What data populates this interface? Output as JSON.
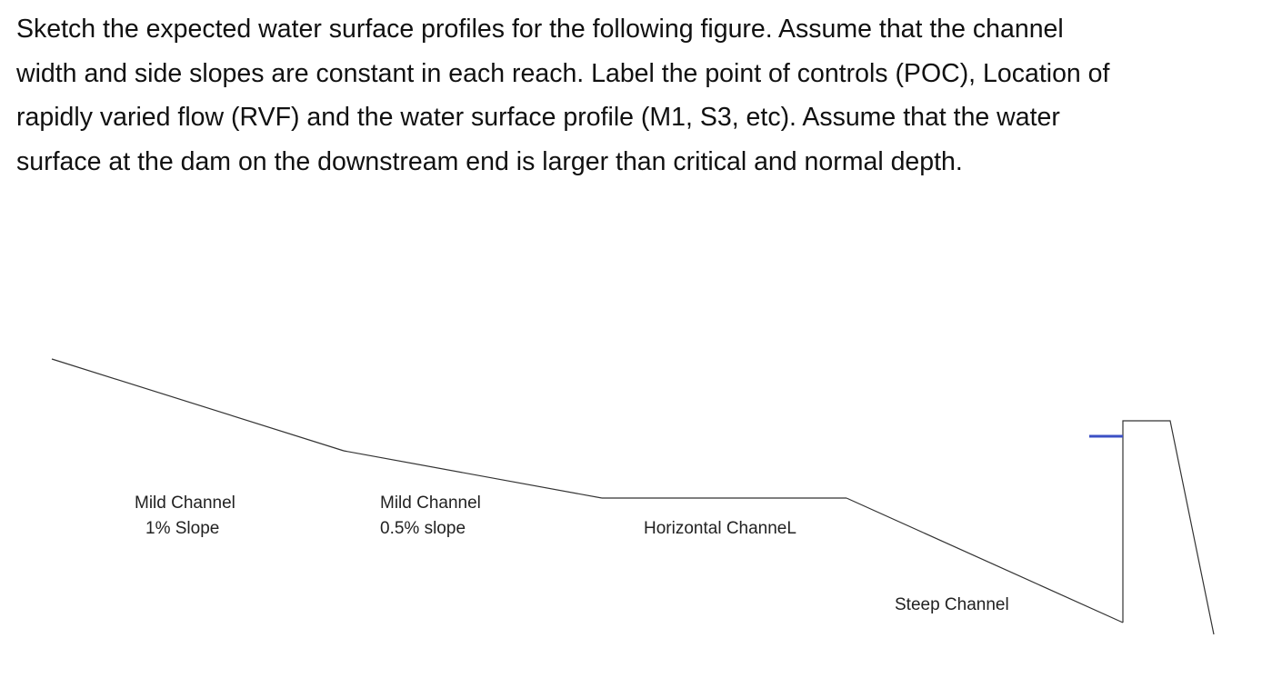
{
  "question": {
    "lines": [
      "Sketch the expected water surface profiles for the following figure.  Assume that the channel",
      "width and side slopes are constant in each reach.  Label the point of controls (POC), Location of",
      "rapidly varied flow (RVF) and the water surface profile (M1, S3, etc).  Assume that the water",
      "surface at the dam on the downstream end is larger than critical and normal depth."
    ]
  },
  "reaches": {
    "mild_1": {
      "line1": "Mild Channel",
      "line2": "1% Slope"
    },
    "mild_2": {
      "line1": "Mild Channel",
      "line2": "0.5% slope"
    },
    "horizontal": {
      "line1": "Horizontal ChanneL"
    },
    "steep": {
      "line1": "Steep Channel"
    }
  },
  "colors": {
    "channel_bed": "#333333",
    "dam": "#333333",
    "water_surface_mark": "#3b4fc4"
  }
}
